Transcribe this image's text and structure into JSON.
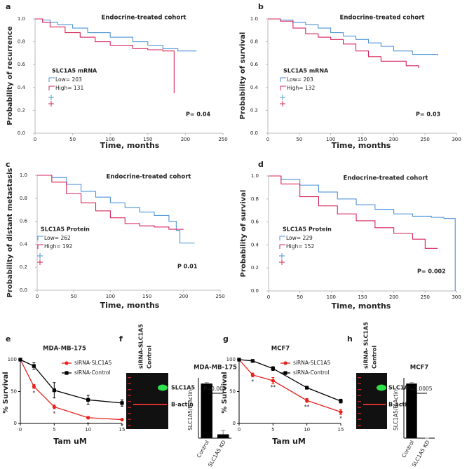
{
  "chart_data": [
    {
      "panel": "a",
      "type": "km",
      "title": "Endocrine-treated cohort",
      "x_label": "Time, months",
      "y_label": "Probability of recurrence",
      "legend_title": "SLC1A5 mRNA",
      "p_value": "P= 0.04",
      "xlim": [
        0,
        250
      ],
      "xticks": [
        0,
        50,
        100,
        150,
        200,
        250
      ],
      "ylim": [
        0,
        1
      ],
      "yticks": [
        {
          "value": 0,
          "label": "0.0"
        },
        0.2,
        0.4,
        0.6,
        0.8,
        {
          "value": 1,
          "label": "1.0"
        }
      ],
      "series": [
        {
          "name": "Low= 203",
          "color": "#4f93d8",
          "x": [
            0,
            10,
            20,
            30,
            50,
            70,
            100,
            130,
            150,
            170,
            190,
            215
          ],
          "values": [
            1,
            0.99,
            0.97,
            0.95,
            0.92,
            0.88,
            0.84,
            0.8,
            0.77,
            0.74,
            0.72,
            0.72
          ]
        },
        {
          "name": "High= 131",
          "color": "#d6245a",
          "x": [
            0,
            10,
            20,
            40,
            60,
            80,
            100,
            130,
            150,
            170,
            185,
            185
          ],
          "values": [
            1,
            0.97,
            0.93,
            0.88,
            0.84,
            0.8,
            0.77,
            0.74,
            0.73,
            0.72,
            0.7,
            0.35
          ]
        }
      ]
    },
    {
      "panel": "b",
      "type": "km",
      "title": "Endocrine-treated cohort",
      "x_label": "Time, months",
      "y_label": "Probability of survival",
      "legend_title": "SLC1A5 mRNA",
      "p_value": "P= 0.03",
      "xlim": [
        0,
        300
      ],
      "xticks": [
        0,
        50,
        100,
        150,
        200,
        250,
        300
      ],
      "ylim": [
        0,
        1
      ],
      "yticks": [
        {
          "value": 0,
          "label": "0.0"
        },
        0.2,
        0.4,
        0.6,
        0.8,
        {
          "value": 1,
          "label": "1.0"
        }
      ],
      "series": [
        {
          "name": "Low= 203",
          "color": "#4f93d8",
          "x": [
            0,
            20,
            40,
            60,
            80,
            100,
            120,
            140,
            160,
            180,
            200,
            230,
            270
          ],
          "values": [
            1,
            0.99,
            0.97,
            0.95,
            0.92,
            0.88,
            0.85,
            0.82,
            0.79,
            0.76,
            0.72,
            0.69,
            0.68
          ]
        },
        {
          "name": "High= 132",
          "color": "#d6245a",
          "x": [
            0,
            20,
            40,
            60,
            80,
            100,
            120,
            140,
            160,
            180,
            220,
            240
          ],
          "values": [
            1,
            0.98,
            0.92,
            0.87,
            0.84,
            0.82,
            0.78,
            0.72,
            0.67,
            0.63,
            0.59,
            0.57
          ]
        }
      ]
    },
    {
      "panel": "c",
      "type": "km",
      "title": "Endocrine-treated cohort",
      "x_label": "Time, months",
      "y_label": "Probability of distant metastasis",
      "legend_title": "SLC1A5 Protein",
      "p_value": "P 0.01",
      "xlim": [
        0,
        250
      ],
      "xticks": [
        0,
        50,
        100,
        150,
        200,
        250
      ],
      "ylim": [
        0,
        1
      ],
      "yticks": [
        {
          "value": 0,
          "label": "0.0"
        },
        0.2,
        0.4,
        0.6,
        0.8,
        {
          "value": 1,
          "label": "1.0"
        }
      ],
      "series": [
        {
          "name": "Low= 262",
          "color": "#4f93d8",
          "x": [
            0,
            20,
            40,
            60,
            80,
            100,
            120,
            140,
            160,
            180,
            190,
            195,
            215
          ],
          "values": [
            1,
            0.98,
            0.92,
            0.86,
            0.81,
            0.76,
            0.72,
            0.68,
            0.65,
            0.6,
            0.52,
            0.41,
            0.41
          ]
        },
        {
          "name": "High= 192",
          "color": "#d6245a",
          "x": [
            0,
            20,
            40,
            60,
            80,
            100,
            120,
            140,
            160,
            180,
            200
          ],
          "values": [
            1,
            0.94,
            0.84,
            0.76,
            0.69,
            0.63,
            0.58,
            0.56,
            0.55,
            0.53,
            0.53
          ]
        }
      ]
    },
    {
      "panel": "d",
      "type": "km",
      "title": "Endocrine-treated cohort",
      "x_label": "Time, months",
      "y_label": "Probability of survival",
      "legend_title": "SLC1A5 Protein",
      "p_value": "P= 0.002",
      "xlim": [
        0,
        300
      ],
      "xticks": [
        0,
        50,
        100,
        150,
        200,
        250,
        300
      ],
      "ylim": [
        0,
        1
      ],
      "yticks": [
        {
          "value": 0,
          "label": "0.0"
        },
        0.2,
        0.4,
        0.6,
        0.8,
        {
          "value": 1,
          "label": "1.0"
        }
      ],
      "series": [
        {
          "name": "Low= 229",
          "color": "#4f93d8",
          "x": [
            0,
            20,
            50,
            80,
            110,
            140,
            170,
            200,
            230,
            260,
            280,
            298,
            298
          ],
          "values": [
            1,
            0.97,
            0.92,
            0.86,
            0.8,
            0.75,
            0.71,
            0.67,
            0.65,
            0.64,
            0.63,
            0.63,
            0
          ]
        },
        {
          "name": "High= 152",
          "color": "#d6245a",
          "x": [
            0,
            20,
            50,
            80,
            110,
            140,
            170,
            200,
            230,
            250,
            270
          ],
          "values": [
            1,
            0.93,
            0.82,
            0.74,
            0.67,
            0.61,
            0.55,
            0.5,
            0.45,
            0.37,
            0.37
          ]
        }
      ]
    },
    {
      "panel": "e",
      "type": "line",
      "title": "MDA-MB-175",
      "x_label": "Tam uM",
      "y_label": "% Survival",
      "x": [
        0,
        2,
        5,
        10,
        15
      ],
      "xlim": [
        0,
        15
      ],
      "xticks": [
        0,
        5,
        10,
        15
      ],
      "ylim": [
        0,
        100
      ],
      "yticks": [
        0,
        50,
        100
      ],
      "series": [
        {
          "name": "siRNA-SLC1A5",
          "color": "#e8231c",
          "values": [
            100,
            58,
            26,
            9,
            6
          ],
          "errors": [
            0,
            3,
            3,
            2,
            1
          ]
        },
        {
          "name": "siRNA-Control",
          "color": "#000000",
          "values": [
            100,
            90,
            52,
            37,
            32
          ],
          "errors": [
            0,
            5,
            12,
            7,
            5
          ]
        }
      ],
      "annotations": [
        {
          "x": 2,
          "text": "*"
        },
        {
          "x": 5,
          "text": "*"
        },
        {
          "x": 10,
          "text": "*"
        },
        {
          "x": 15,
          "text": "*"
        }
      ]
    },
    {
      "panel": "f",
      "type": "bar",
      "title": "MDA-MB-175",
      "y_label": "SLC1A5/B-Actin",
      "p_value": "P=0.005",
      "blot": {
        "lanes": [
          "siRNA-SLC1A5",
          "Control"
        ],
        "bands": [
          "SLC1A5",
          "B-actin"
        ]
      },
      "categories": [
        "Control",
        "SLC1A5 KD"
      ],
      "values": [
        0.57,
        0.04
      ],
      "errors": [
        0.01,
        0.04
      ],
      "color": "#000000",
      "ylim": [
        0,
        0.6
      ]
    },
    {
      "panel": "g",
      "type": "line",
      "title": "MCF7",
      "x_label": "Tam uM",
      "y_label": "% Survival",
      "x": [
        0,
        2,
        5,
        10,
        15
      ],
      "xlim": [
        0,
        15
      ],
      "xticks": [
        0,
        5,
        10,
        15
      ],
      "ylim": [
        0,
        100
      ],
      "yticks": [
        0,
        50,
        100
      ],
      "series": [
        {
          "name": "siRNA-SLC1A5",
          "color": "#e8231c",
          "values": [
            100,
            76,
            67,
            36,
            18
          ],
          "errors": [
            0,
            3,
            5,
            3,
            4
          ]
        },
        {
          "name": "siRNA-Control",
          "color": "#000000",
          "values": [
            100,
            98,
            86,
            56,
            35
          ],
          "errors": [
            0,
            1,
            3,
            2,
            3
          ]
        }
      ],
      "annotations": [
        {
          "x": 2,
          "text": "*"
        },
        {
          "x": 5,
          "text": "**"
        },
        {
          "x": 10,
          "text": "**"
        },
        {
          "x": 15,
          "text": "*"
        }
      ]
    },
    {
      "panel": "h",
      "type": "bar",
      "title": "MCF7",
      "y_label": "SLC1A5/B-Actin",
      "p_value": "P=0.0005",
      "blot": {
        "lanes": [
          "siRNA- SLC1A5",
          "Control"
        ],
        "bands": [
          "SLC1A5",
          "B-actin"
        ]
      },
      "categories": [
        "Control",
        "SLC1A5 KD"
      ],
      "values": [
        0.57,
        0
      ],
      "errors": [
        0.01,
        0
      ],
      "color": "#000000",
      "ylim": [
        0,
        0.6
      ]
    }
  ]
}
